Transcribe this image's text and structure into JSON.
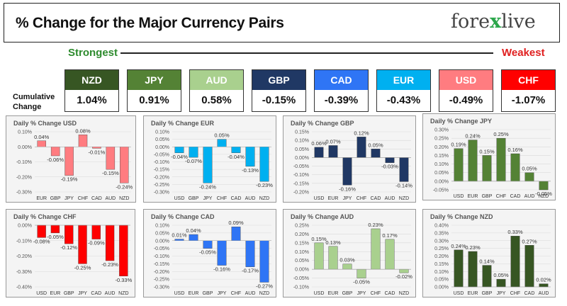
{
  "header": {
    "title": "% Change for the Major Currency Pairs",
    "logo_text": "fore",
    "logo_accent": "x",
    "logo_text2": "live"
  },
  "labels": {
    "strongest": "Strongest",
    "weakest": "Weakest",
    "cumulative_line1": "Cumulative",
    "cumulative_line2": "Change"
  },
  "rankings": [
    {
      "currency": "NZD",
      "value": "1.04%",
      "color": "#375623"
    },
    {
      "currency": "JPY",
      "value": "0.91%",
      "color": "#548235"
    },
    {
      "currency": "AUD",
      "value": "0.58%",
      "color": "#a9d08e"
    },
    {
      "currency": "GBP",
      "value": "-0.15%",
      "color": "#203864"
    },
    {
      "currency": "CAD",
      "value": "-0.39%",
      "color": "#2f75f5"
    },
    {
      "currency": "EUR",
      "value": "-0.43%",
      "color": "#00b0f0"
    },
    {
      "currency": "USD",
      "value": "-0.49%",
      "color": "#ff7c80"
    },
    {
      "currency": "CHF",
      "value": "-1.07%",
      "color": "#ff0000"
    }
  ],
  "chart_data": [
    {
      "type": "bar",
      "title": "Daily % Change USD",
      "categories": [
        "EUR",
        "GBP",
        "JPY",
        "CHF",
        "CAD",
        "AUD",
        "NZD"
      ],
      "values": [
        0.04,
        -0.06,
        -0.19,
        0.08,
        -0.01,
        -0.15,
        -0.24
      ],
      "labels": [
        "0.04%",
        "-0.06%",
        "-0.19%",
        "0.08%",
        "-0.01%",
        "-0.15%",
        "-0.24%"
      ],
      "ylim": [
        -0.3,
        0.1
      ],
      "ticks": [
        0.1,
        0.0,
        -0.1,
        -0.2,
        -0.3
      ],
      "tick_labels": [
        "0.10%",
        "0.00%",
        "-0.10%",
        "-0.20%",
        "-0.30%"
      ],
      "color": "#ff7c80"
    },
    {
      "type": "bar",
      "title": "Daily % Change EUR",
      "categories": [
        "USD",
        "GBP",
        "JPY",
        "CHF",
        "CAD",
        "AUD",
        "NZD"
      ],
      "values": [
        -0.04,
        -0.07,
        -0.24,
        0.05,
        -0.04,
        -0.13,
        -0.23
      ],
      "labels": [
        "-0.04%",
        "-0.07%",
        "-0.24%",
        "0.05%",
        "-0.04%",
        "-0.13%",
        "-0.23%"
      ],
      "ylim": [
        -0.3,
        0.1
      ],
      "ticks": [
        0.1,
        0.05,
        0.0,
        -0.05,
        -0.1,
        -0.15,
        -0.2,
        -0.25,
        -0.3
      ],
      "tick_labels": [
        "0.10%",
        "0.05%",
        "0.00%",
        "-0.05%",
        "-0.10%",
        "-0.15%",
        "-0.20%",
        "-0.25%",
        "-0.30%"
      ],
      "color": "#00b0f0"
    },
    {
      "type": "bar",
      "title": "Daily % Change GBP",
      "categories": [
        "USD",
        "EUR",
        "JPY",
        "CHF",
        "CAD",
        "AUD",
        "NZD"
      ],
      "values": [
        0.06,
        0.07,
        -0.16,
        0.12,
        0.05,
        -0.03,
        -0.14
      ],
      "labels": [
        "0.06%",
        "0.07%",
        "-0.16%",
        "0.12%",
        "0.05%",
        "-0.03%",
        "-0.14%"
      ],
      "ylim": [
        -0.2,
        0.15
      ],
      "ticks": [
        0.15,
        0.1,
        0.05,
        0.0,
        -0.05,
        -0.1,
        -0.15,
        -0.2
      ],
      "tick_labels": [
        "0.15%",
        "0.10%",
        "0.05%",
        "0.00%",
        "-0.05%",
        "-0.10%",
        "-0.15%",
        "-0.20%"
      ],
      "color": "#203864"
    },
    {
      "type": "bar",
      "title": "Daily % Change JPY",
      "categories": [
        "USD",
        "EUR",
        "GBP",
        "CHF",
        "CAD",
        "AUD",
        "NZD"
      ],
      "values": [
        0.19,
        0.24,
        0.15,
        0.25,
        0.16,
        0.05,
        -0.05
      ],
      "labels": [
        "0.19%",
        "0.24%",
        "0.15%",
        "0.25%",
        "0.16%",
        "0.05%",
        "-0.05%"
      ],
      "ylim": [
        -0.05,
        0.3
      ],
      "ticks": [
        0.3,
        0.25,
        0.2,
        0.15,
        0.1,
        0.05,
        0.0,
        -0.05
      ],
      "tick_labels": [
        "0.30%",
        "0.25%",
        "0.20%",
        "0.15%",
        "0.10%",
        "0.05%",
        "0.00%",
        "-0.05%"
      ],
      "color": "#548235"
    },
    {
      "type": "bar",
      "title": "Daily % Change CHF",
      "categories": [
        "USD",
        "EUR",
        "GBP",
        "JPY",
        "CAD",
        "AUD",
        "NZD"
      ],
      "values": [
        -0.08,
        -0.05,
        -0.12,
        -0.25,
        -0.09,
        -0.23,
        -0.33
      ],
      "labels": [
        "-0.08%",
        "-0.05%",
        "-0.12%",
        "-0.25%",
        "-0.09%",
        "-0.23%",
        "-0.33%"
      ],
      "ylim": [
        -0.4,
        0.0
      ],
      "ticks": [
        0.0,
        -0.1,
        -0.2,
        -0.3,
        -0.4
      ],
      "tick_labels": [
        "0.00%",
        "-0.10%",
        "-0.20%",
        "-0.30%",
        "-0.40%"
      ],
      "color": "#ff0000"
    },
    {
      "type": "bar",
      "title": "Daily % Change CAD",
      "categories": [
        "USD",
        "EUR",
        "GBP",
        "JPY",
        "CHF",
        "AUD",
        "NZD"
      ],
      "values": [
        0.01,
        0.04,
        -0.05,
        -0.16,
        0.09,
        -0.17,
        -0.27
      ],
      "labels": [
        "0.01%",
        "0.04%",
        "-0.05%",
        "-0.16%",
        "0.09%",
        "-0.17%",
        "-0.27%"
      ],
      "ylim": [
        -0.3,
        0.1
      ],
      "ticks": [
        0.1,
        0.05,
        0.0,
        -0.05,
        -0.1,
        -0.15,
        -0.2,
        -0.25,
        -0.3
      ],
      "tick_labels": [
        "0.10%",
        "0.05%",
        "0.00%",
        "-0.05%",
        "-0.10%",
        "-0.15%",
        "-0.20%",
        "-0.25%",
        "-0.30%"
      ],
      "color": "#2f75f5"
    },
    {
      "type": "bar",
      "title": "Daily % Change AUD",
      "categories": [
        "USD",
        "EUR",
        "GBP",
        "JPY",
        "CHF",
        "CAD",
        "NZD"
      ],
      "values": [
        0.15,
        0.13,
        0.03,
        -0.05,
        0.23,
        0.17,
        -0.02
      ],
      "labels": [
        "0.15%",
        "0.13%",
        "0.03%",
        "-0.05%",
        "0.23%",
        "0.17%",
        "-0.02%"
      ],
      "ylim": [
        -0.1,
        0.25
      ],
      "ticks": [
        0.25,
        0.2,
        0.15,
        0.1,
        0.05,
        0.0,
        -0.05,
        -0.1
      ],
      "tick_labels": [
        "0.25%",
        "0.20%",
        "0.15%",
        "0.10%",
        "0.05%",
        "0.00%",
        "-0.05%",
        "-0.10%"
      ],
      "color": "#a9d08e"
    },
    {
      "type": "bar",
      "title": "Daily % Change NZD",
      "categories": [
        "USD",
        "EUR",
        "GBP",
        "JPY",
        "CHF",
        "CAD",
        "AUD"
      ],
      "values": [
        0.24,
        0.23,
        0.14,
        0.05,
        0.33,
        0.27,
        0.02
      ],
      "labels": [
        "0.24%",
        "0.23%",
        "0.14%",
        "0.05%",
        "0.33%",
        "0.27%",
        "0.02%"
      ],
      "ylim": [
        0.0,
        0.4
      ],
      "ticks": [
        0.4,
        0.35,
        0.3,
        0.25,
        0.2,
        0.15,
        0.1,
        0.05,
        0.0
      ],
      "tick_labels": [
        "0.40%",
        "0.35%",
        "0.30%",
        "0.25%",
        "0.20%",
        "0.15%",
        "0.10%",
        "0.05%",
        "0.00%"
      ],
      "color": "#375623"
    }
  ]
}
